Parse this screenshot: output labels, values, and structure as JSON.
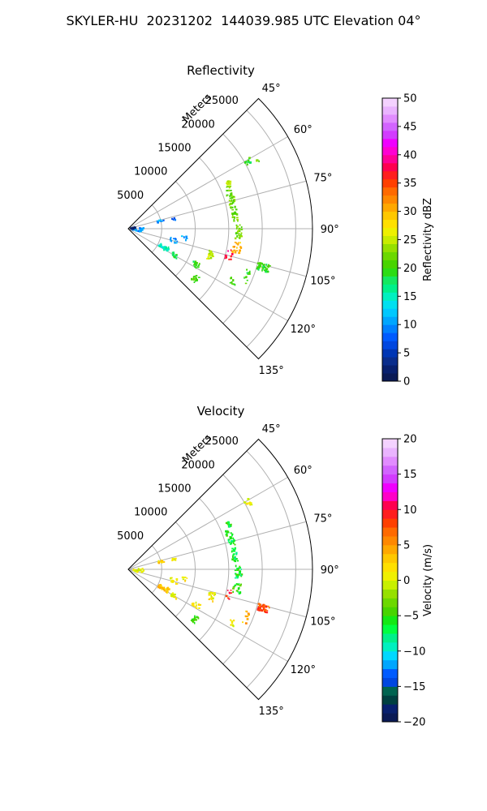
{
  "figure": {
    "title": "SKYLER-HU  20231202  144039.985 UTC Elevation 04°"
  },
  "chart_data": [
    {
      "type": "polar_sector",
      "title": "Reflectivity",
      "radial_label": "Meters",
      "radial_ticks": [
        5000,
        10000,
        15000,
        20000,
        25000
      ],
      "r_max": 27500,
      "angle_ticks_deg": [
        45,
        60,
        75,
        90,
        105,
        120,
        135
      ],
      "angle_tick_labels": [
        "45°",
        "60°",
        "75°",
        "90°",
        "105°",
        "120°",
        "135°"
      ],
      "theta_range_deg": [
        45,
        135
      ],
      "grid": true,
      "colorbar": {
        "label": "Reflectivity dBZ",
        "min": 0,
        "max": 50,
        "ticks": [
          0,
          5,
          10,
          15,
          20,
          25,
          30,
          35,
          40,
          45,
          50
        ],
        "tick_labels": [
          "0",
          "5",
          "10",
          "15",
          "20",
          "25",
          "30",
          "35",
          "40",
          "45",
          "50"
        ],
        "colors": [
          "#0a1a55",
          "#08206e",
          "#0a2d8c",
          "#0036b4",
          "#0047e0",
          "#005bff",
          "#0080ff",
          "#00a6ff",
          "#00c8ff",
          "#00e0f0",
          "#00f0c0",
          "#00f08a",
          "#14e860",
          "#2cdc14",
          "#48d400",
          "#6cd800",
          "#96e000",
          "#c8ec00",
          "#eef000",
          "#ffe000",
          "#ffc800",
          "#ffa800",
          "#ff8800",
          "#ff6a00",
          "#ff4000",
          "#ff1e1e",
          "#ff0050",
          "#ff0096",
          "#ff00d2",
          "#f000ff",
          "#d23cff",
          "#d264ff",
          "#e18cff",
          "#eab4ff",
          "#f4d2ff"
        ]
      },
      "echo_regions": [
        {
          "theta": 61,
          "r": 20500,
          "dtheta": 3,
          "dr": 500,
          "level": 20,
          "n": 10
        },
        {
          "theta": 62,
          "r": 22000,
          "dtheta": 1.5,
          "dr": 300,
          "level": 22,
          "n": 4
        },
        {
          "theta": 66,
          "r": 16500,
          "dtheta": 3,
          "dr": 300,
          "level": 25,
          "n": 12
        },
        {
          "theta": 72,
          "r": 16000,
          "dtheta": 10,
          "dr": 500,
          "level": 22,
          "n": 30
        },
        {
          "theta": 82,
          "r": 16000,
          "dtheta": 8,
          "dr": 400,
          "level": 22,
          "n": 25
        },
        {
          "theta": 92,
          "r": 16500,
          "dtheta": 8,
          "dr": 500,
          "level": 22,
          "n": 25
        },
        {
          "theta": 100,
          "r": 16500,
          "dtheta": 6,
          "dr": 600,
          "level": 30,
          "n": 20
        },
        {
          "theta": 104,
          "r": 15500,
          "dtheta": 6,
          "dr": 500,
          "level": 37,
          "n": 10
        },
        {
          "theta": 106,
          "r": 21000,
          "dtheta": 3,
          "dr": 900,
          "level": 20,
          "n": 45
        },
        {
          "theta": 112,
          "r": 19000,
          "dtheta": 6,
          "dr": 400,
          "level": 20,
          "n": 12
        },
        {
          "theta": 117,
          "r": 17500,
          "dtheta": 3,
          "dr": 500,
          "level": 20,
          "n": 8
        },
        {
          "theta": 108,
          "r": 13000,
          "dtheta": 6,
          "dr": 500,
          "level": 25,
          "n": 18
        },
        {
          "theta": 118,
          "r": 11500,
          "dtheta": 4,
          "dr": 600,
          "level": 20,
          "n": 15
        },
        {
          "theta": 127,
          "r": 12500,
          "dtheta": 5,
          "dr": 400,
          "level": 20,
          "n": 15
        },
        {
          "theta": 77,
          "r": 5000,
          "dtheta": 4,
          "dr": 500,
          "level": 10,
          "n": 10
        },
        {
          "theta": 78,
          "r": 7000,
          "dtheta": 3,
          "dr": 300,
          "level": 8,
          "n": 6
        },
        {
          "theta": 118,
          "r": 6000,
          "dtheta": 6,
          "dr": 800,
          "level": 15,
          "n": 30
        },
        {
          "theta": 120,
          "r": 8000,
          "dtheta": 4,
          "dr": 500,
          "level": 18,
          "n": 14
        },
        {
          "theta": 96,
          "r": 1500,
          "dtheta": 20,
          "dr": 800,
          "level": 10,
          "n": 24
        },
        {
          "theta": 88,
          "r": 700,
          "dtheta": 25,
          "dr": 500,
          "level": 2,
          "n": 10
        },
        {
          "theta": 104,
          "r": 7000,
          "dtheta": 6,
          "dr": 600,
          "level": 10,
          "n": 12
        },
        {
          "theta": 99,
          "r": 8500,
          "dtheta": 5,
          "dr": 400,
          "level": 10,
          "n": 6
        }
      ]
    },
    {
      "type": "polar_sector",
      "title": "Velocity",
      "radial_label": "Meters",
      "radial_ticks": [
        5000,
        10000,
        15000,
        20000,
        25000
      ],
      "r_max": 27500,
      "angle_ticks_deg": [
        45,
        60,
        75,
        90,
        105,
        120,
        135
      ],
      "angle_tick_labels": [
        "45°",
        "60°",
        "75°",
        "90°",
        "105°",
        "120°",
        "135°"
      ],
      "theta_range_deg": [
        45,
        135
      ],
      "grid": true,
      "colorbar": {
        "label": "Velocity (m/s)",
        "min": -20,
        "max": 20,
        "ticks": [
          -20,
          -15,
          -10,
          -5,
          0,
          5,
          10,
          15,
          20
        ],
        "tick_labels": [
          "−20",
          "−15",
          "−10",
          "−5",
          "0",
          "5",
          "10",
          "15",
          "20"
        ],
        "colors": [
          "#0a1a55",
          "#08206e",
          "#004040",
          "#006450",
          "#0047e0",
          "#005bff",
          "#00a6ff",
          "#00d8ff",
          "#00f0c0",
          "#00f08a",
          "#00ff40",
          "#14e814",
          "#48d400",
          "#6cd800",
          "#96e000",
          "#c8f000",
          "#f0f000",
          "#ffe000",
          "#ffc800",
          "#ffa800",
          "#ff8800",
          "#ff6a00",
          "#ff4000",
          "#ff1e1e",
          "#ff0050",
          "#ff00c8",
          "#f000ff",
          "#d23cff",
          "#d264ff",
          "#e18cff",
          "#eab4ff",
          "#f4d2ff"
        ]
      },
      "echo_regions": [
        {
          "theta": 61,
          "r": 20500,
          "dtheta": 3,
          "dr": 500,
          "level": 1,
          "n": 10
        },
        {
          "theta": 66,
          "r": 16500,
          "dtheta": 3,
          "dr": 300,
          "level": -5,
          "n": 12
        },
        {
          "theta": 72,
          "r": 16000,
          "dtheta": 10,
          "dr": 500,
          "level": -6,
          "n": 30
        },
        {
          "theta": 82,
          "r": 16000,
          "dtheta": 8,
          "dr": 400,
          "level": -6,
          "n": 25
        },
        {
          "theta": 92,
          "r": 16500,
          "dtheta": 8,
          "dr": 500,
          "level": -6,
          "n": 25
        },
        {
          "theta": 100,
          "r": 16500,
          "dtheta": 6,
          "dr": 600,
          "level": -5,
          "n": 20
        },
        {
          "theta": 104,
          "r": 15500,
          "dtheta": 6,
          "dr": 500,
          "level": 9,
          "n": 8
        },
        {
          "theta": 106,
          "r": 21000,
          "dtheta": 3,
          "dr": 900,
          "level": 8,
          "n": 45
        },
        {
          "theta": 112,
          "r": 19000,
          "dtheta": 6,
          "dr": 400,
          "level": 4,
          "n": 12
        },
        {
          "theta": 117,
          "r": 17500,
          "dtheta": 3,
          "dr": 500,
          "level": 1,
          "n": 8
        },
        {
          "theta": 108,
          "r": 13000,
          "dtheta": 6,
          "dr": 500,
          "level": 1,
          "n": 18
        },
        {
          "theta": 118,
          "r": 11500,
          "dtheta": 4,
          "dr": 600,
          "level": 1,
          "n": 15
        },
        {
          "theta": 127,
          "r": 12500,
          "dtheta": 5,
          "dr": 400,
          "level": -5,
          "n": 15
        },
        {
          "theta": 77,
          "r": 5000,
          "dtheta": 4,
          "dr": 500,
          "level": 3,
          "n": 10
        },
        {
          "theta": 78,
          "r": 7000,
          "dtheta": 3,
          "dr": 300,
          "level": 1,
          "n": 6
        },
        {
          "theta": 118,
          "r": 6000,
          "dtheta": 6,
          "dr": 800,
          "level": 3,
          "n": 30
        },
        {
          "theta": 120,
          "r": 8000,
          "dtheta": 4,
          "dr": 500,
          "level": 1,
          "n": 14
        },
        {
          "theta": 96,
          "r": 1500,
          "dtheta": 20,
          "dr": 800,
          "level": 0,
          "n": 24
        },
        {
          "theta": 104,
          "r": 7000,
          "dtheta": 6,
          "dr": 600,
          "level": 1,
          "n": 12
        },
        {
          "theta": 99,
          "r": 8500,
          "dtheta": 5,
          "dr": 400,
          "level": 1,
          "n": 6
        }
      ]
    }
  ]
}
